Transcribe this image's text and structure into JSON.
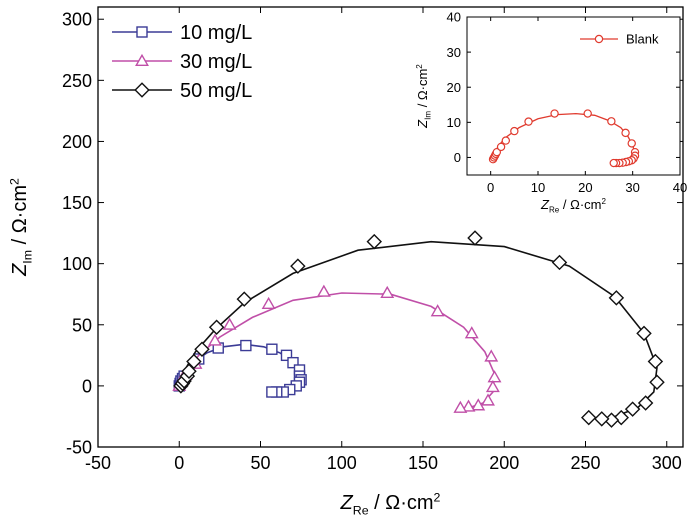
{
  "chart_data": [
    {
      "type": "scatter",
      "role": "main",
      "xlabel_main": "Z",
      "xlabel_sub": "Re",
      "xlabel_unit": " / Ω·cm",
      "xlabel_sup": "2",
      "ylabel_main": "Z",
      "ylabel_sub": "Im",
      "ylabel_unit": " / Ω·cm",
      "ylabel_sup": "2",
      "xlim": [
        -50,
        310
      ],
      "ylim": [
        -50,
        310
      ],
      "xticks": [
        -50,
        0,
        50,
        100,
        150,
        200,
        250,
        300
      ],
      "yticks": [
        -50,
        0,
        50,
        100,
        150,
        200,
        250,
        300
      ],
      "grid": false,
      "legend_position": "top-left",
      "series": [
        {
          "name": "10 mg/L",
          "color": "#3b3b96",
          "marker": "square",
          "curve": [
            [
              0,
              0
            ],
            [
              1,
              6
            ],
            [
              4,
              13
            ],
            [
              9,
              20
            ],
            [
              17,
              27
            ],
            [
              27,
              32
            ],
            [
              40,
              34
            ],
            [
              52,
              32
            ],
            [
              62,
              27
            ],
            [
              69,
              20
            ],
            [
              74,
              11
            ],
            [
              75,
              3
            ],
            [
              71,
              -3
            ],
            [
              64,
              -5
            ],
            [
              57,
              -5
            ]
          ],
          "points": [
            [
              0,
              0
            ],
            [
              0.5,
              2
            ],
            [
              1,
              4
            ],
            [
              2,
              6
            ],
            [
              3,
              8
            ],
            [
              12,
              22
            ],
            [
              24,
              31
            ],
            [
              41,
              33
            ],
            [
              57,
              30
            ],
            [
              66,
              25
            ],
            [
              70,
              19
            ],
            [
              74,
              13
            ],
            [
              74,
              8
            ],
            [
              75,
              5
            ],
            [
              74,
              3
            ],
            [
              72,
              0
            ],
            [
              68,
              -3
            ],
            [
              64,
              -5
            ],
            [
              60,
              -5
            ],
            [
              57,
              -5
            ]
          ]
        },
        {
          "name": "30 mg/L",
          "color": "#c04fa8",
          "marker": "triangle",
          "curve": [
            [
              0,
              0
            ],
            [
              4,
              12
            ],
            [
              12,
              25
            ],
            [
              25,
              40
            ],
            [
              45,
              56
            ],
            [
              70,
              70
            ],
            [
              100,
              76
            ],
            [
              130,
              75
            ],
            [
              155,
              65
            ],
            [
              175,
              48
            ],
            [
              188,
              28
            ],
            [
              194,
              10
            ],
            [
              193,
              -5
            ],
            [
              187,
              -14
            ],
            [
              178,
              -18
            ],
            [
              171,
              -19
            ]
          ],
          "points": [
            [
              0,
              0
            ],
            [
              1,
              3
            ],
            [
              2,
              6
            ],
            [
              4,
              9
            ],
            [
              10,
              18
            ],
            [
              22,
              37
            ],
            [
              31,
              50
            ],
            [
              55,
              67
            ],
            [
              89,
              77
            ],
            [
              128,
              76
            ],
            [
              159,
              61
            ],
            [
              180,
              43
            ],
            [
              192,
              24
            ],
            [
              194,
              7
            ],
            [
              193,
              -1
            ],
            [
              190,
              -12
            ],
            [
              184,
              -16
            ],
            [
              178,
              -17
            ],
            [
              173,
              -18
            ]
          ]
        },
        {
          "name": "50 mg/L",
          "color": "#111111",
          "marker": "diamond",
          "curve": [
            [
              0,
              0
            ],
            [
              3,
              12
            ],
            [
              10,
              28
            ],
            [
              22,
              46
            ],
            [
              40,
              68
            ],
            [
              70,
              92
            ],
            [
              110,
              111
            ],
            [
              155,
              118
            ],
            [
              200,
              114
            ],
            [
              240,
              98
            ],
            [
              268,
              73
            ],
            [
              286,
              43
            ],
            [
              294,
              15
            ],
            [
              292,
              -5
            ],
            [
              282,
              -18
            ],
            [
              266,
              -26
            ],
            [
              252,
              -26
            ]
          ],
          "points": [
            [
              1,
              0
            ],
            [
              2,
              2
            ],
            [
              3,
              4
            ],
            [
              5,
              8
            ],
            [
              6,
              12
            ],
            [
              9,
              20
            ],
            [
              14,
              30
            ],
            [
              23,
              48
            ],
            [
              40,
              71
            ],
            [
              73,
              98
            ],
            [
              120,
              118
            ],
            [
              182,
              121
            ],
            [
              234,
              101
            ],
            [
              269,
              72
            ],
            [
              286,
              43
            ],
            [
              293,
              20
            ],
            [
              294,
              3
            ],
            [
              287,
              -14
            ],
            [
              279,
              -19
            ],
            [
              272,
              -26
            ],
            [
              266,
              -28
            ],
            [
              260,
              -27
            ],
            [
              252,
              -26
            ]
          ]
        }
      ]
    },
    {
      "type": "scatter",
      "role": "inset",
      "xlabel_main": "Z",
      "xlabel_sub": "Re",
      "xlabel_unit": " / Ω·cm",
      "xlabel_sup": "2",
      "ylabel_main": "Z",
      "ylabel_sub": "Im",
      "ylabel_unit": " / Ω·cm",
      "ylabel_sup": "2",
      "xlim": [
        -5,
        40
      ],
      "ylim": [
        -5,
        40
      ],
      "xticks": [
        0,
        10,
        20,
        30,
        40
      ],
      "yticks": [
        0,
        10,
        20,
        30,
        40
      ],
      "grid": false,
      "legend_position": "top-right",
      "series": [
        {
          "name": "Blank",
          "color": "#e03a2e",
          "marker": "circle",
          "curve": [
            [
              0.5,
              -1
            ],
            [
              0.8,
              1
            ],
            [
              1.5,
              3
            ],
            [
              3,
              5.5
            ],
            [
              6,
              8.5
            ],
            [
              10,
              11
            ],
            [
              14,
              12.2
            ],
            [
              18,
              12.5
            ],
            [
              22,
              12
            ],
            [
              25,
              10.5
            ],
            [
              27.5,
              8.5
            ],
            [
              29,
              6
            ],
            [
              30,
              3.5
            ],
            [
              30.5,
              1
            ],
            [
              30,
              -0.8
            ],
            [
              28.5,
              -1.5
            ],
            [
              27,
              -1.6
            ],
            [
              26,
              -1.6
            ]
          ],
          "points": [
            [
              0.5,
              -0.5
            ],
            [
              0.7,
              0
            ],
            [
              0.9,
              0.5
            ],
            [
              1.1,
              1
            ],
            [
              1.3,
              1.5
            ],
            [
              2.2,
              3
            ],
            [
              3.2,
              4.8
            ],
            [
              5,
              7.5
            ],
            [
              8,
              10.2
            ],
            [
              13.5,
              12.5
            ],
            [
              20.5,
              12.5
            ],
            [
              25.5,
              10.3
            ],
            [
              28.5,
              7
            ],
            [
              29.8,
              4
            ],
            [
              30.5,
              1.5
            ],
            [
              30.5,
              0.5
            ],
            [
              30.2,
              -0.3
            ],
            [
              29.8,
              -0.8
            ],
            [
              29.2,
              -1.1
            ],
            [
              28.6,
              -1.3
            ],
            [
              27.9,
              -1.5
            ],
            [
              27.2,
              -1.6
            ],
            [
              26.5,
              -1.6
            ],
            [
              26,
              -1.6
            ]
          ]
        }
      ]
    }
  ]
}
